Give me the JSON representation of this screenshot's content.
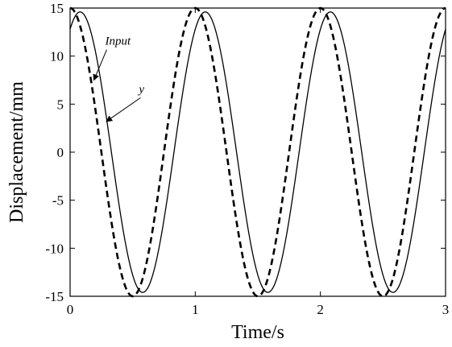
{
  "chart_data": {
    "type": "line",
    "xlabel": "Time/s",
    "ylabel": "Displacement/mm",
    "xlim": [
      0,
      3
    ],
    "ylim": [
      -15,
      15
    ],
    "xticks": [
      0,
      1,
      2,
      3
    ],
    "yticks": [
      15,
      10,
      5,
      0,
      -5,
      -10,
      -15
    ],
    "grid": false,
    "series": [
      {
        "name": "Input",
        "line_style": "dashed",
        "color": "#000000",
        "amplitude": 15,
        "period": 1.0,
        "x": [
          0,
          0.05,
          0.1,
          0.15,
          0.2,
          0.25,
          0.3,
          0.35,
          0.4,
          0.45,
          0.5,
          0.55,
          0.6,
          0.65,
          0.7,
          0.75,
          0.8,
          0.85,
          0.9,
          0.95,
          1.0,
          1.05,
          1.1,
          1.15,
          1.2,
          1.25,
          1.3,
          1.35,
          1.4,
          1.45,
          1.5,
          1.55,
          1.6,
          1.65,
          1.7,
          1.75,
          1.8,
          1.85,
          1.9,
          1.95,
          2.0,
          2.05,
          2.1,
          2.15,
          2.2,
          2.25,
          2.3,
          2.35,
          2.4,
          2.45,
          2.5,
          2.55,
          2.6,
          2.65,
          2.7,
          2.75,
          2.8,
          2.85,
          2.9,
          2.95,
          3.0
        ],
        "y": [
          15,
          14.27,
          12.14,
          8.82,
          4.64,
          0,
          -4.64,
          -8.82,
          -12.14,
          -14.27,
          -15,
          -14.27,
          -12.14,
          -8.82,
          -4.64,
          0,
          4.64,
          8.82,
          12.14,
          14.27,
          15,
          14.27,
          12.14,
          8.82,
          4.64,
          0,
          -4.64,
          -8.82,
          -12.14,
          -14.27,
          -15,
          -14.27,
          -12.14,
          -8.82,
          -4.64,
          0,
          4.64,
          8.82,
          12.14,
          14.27,
          15,
          14.27,
          12.14,
          8.82,
          4.64,
          0,
          -4.64,
          -8.82,
          -12.14,
          -14.27,
          -15,
          -14.27,
          -12.14,
          -8.82,
          -4.64,
          0,
          4.64,
          8.82,
          12.14,
          14.27,
          15
        ]
      },
      {
        "name": "y",
        "line_style": "solid",
        "color": "#000000",
        "amplitude": 14.6,
        "period": 1.0,
        "x": [
          0,
          0.05,
          0.08,
          0.1,
          0.15,
          0.2,
          0.25,
          0.3,
          0.35,
          0.4,
          0.45,
          0.5,
          0.55,
          0.58,
          0.6,
          0.65,
          0.7,
          0.75,
          0.8,
          0.85,
          0.9,
          0.95,
          1.0,
          1.05,
          1.08,
          1.1,
          1.15,
          1.2,
          1.25,
          1.3,
          1.35,
          1.4,
          1.45,
          1.5,
          1.55,
          1.58,
          1.6,
          1.65,
          1.7,
          1.75,
          1.8,
          1.85,
          1.9,
          1.95,
          2.0,
          2.05,
          2.08,
          2.1,
          2.15,
          2.2,
          2.25,
          2.3,
          2.35,
          2.4,
          2.45,
          2.5,
          2.55,
          2.58,
          2.6,
          2.65,
          2.7,
          2.75,
          2.8,
          2.85,
          2.9,
          2.95,
          3.0
        ],
        "y": [
          12.7,
          14.5,
          14.6,
          14.5,
          12.9,
          9.9,
          5.9,
          1.3,
          -3.3,
          -7.6,
          -11.4,
          -13.9,
          -14.6,
          -14.6,
          -14.4,
          -12.9,
          -9.9,
          -5.9,
          -1.3,
          3.3,
          7.6,
          11.4,
          13.9,
          14.5,
          14.6,
          14.5,
          12.9,
          9.9,
          5.9,
          1.3,
          -3.3,
          -7.6,
          -11.4,
          -13.9,
          -14.6,
          -14.6,
          -14.4,
          -12.9,
          -9.9,
          -5.9,
          -1.3,
          3.3,
          7.6,
          11.4,
          13.9,
          14.5,
          14.6,
          14.5,
          12.9,
          9.9,
          5.9,
          1.3,
          -3.3,
          -7.6,
          -11.4,
          -13.9,
          -14.6,
          -14.6,
          -14.4,
          -12.9,
          -9.9,
          -5.9,
          -1.3,
          3.3,
          7.6,
          9.8,
          11.0
        ]
      }
    ],
    "annotations": [
      {
        "text": "Input",
        "x": 0.28,
        "y": 11
      },
      {
        "text": "y",
        "x": 0.55,
        "y": 6
      }
    ]
  }
}
